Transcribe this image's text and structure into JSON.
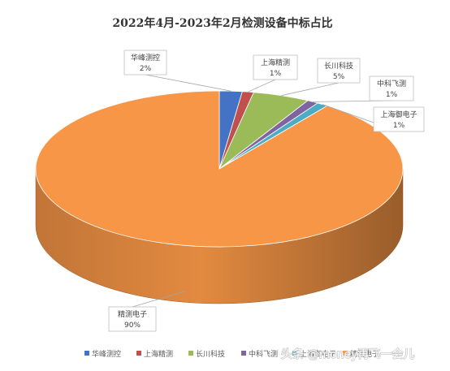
{
  "chart_data": {
    "type": "pie",
    "title": "2022年4月-2023年2月检测设备中标占比",
    "slices": [
      {
        "name": "华峰测控",
        "value": 2,
        "label": "2%",
        "color": "#4472C4"
      },
      {
        "name": "上海精测",
        "value": 1,
        "label": "1%",
        "color": "#C0504D"
      },
      {
        "name": "长川科技",
        "value": 5,
        "label": "5%",
        "color": "#9BBB59"
      },
      {
        "name": "中科飞测",
        "value": 1,
        "label": "1%",
        "color": "#8064A2"
      },
      {
        "name": "上海御电子",
        "value": 1,
        "label": "1%",
        "color": "#4BACC6"
      },
      {
        "name": "精测电子",
        "value": 90,
        "label": "90%",
        "color": "#F79646"
      }
    ],
    "legend": {
      "position": "bottom",
      "entries": [
        "华峰测控",
        "上海精测",
        "长川科技",
        "中科飞测",
        "上海御电子",
        "精测电子"
      ]
    },
    "watermark": "头条 @money再飞一会儿"
  }
}
